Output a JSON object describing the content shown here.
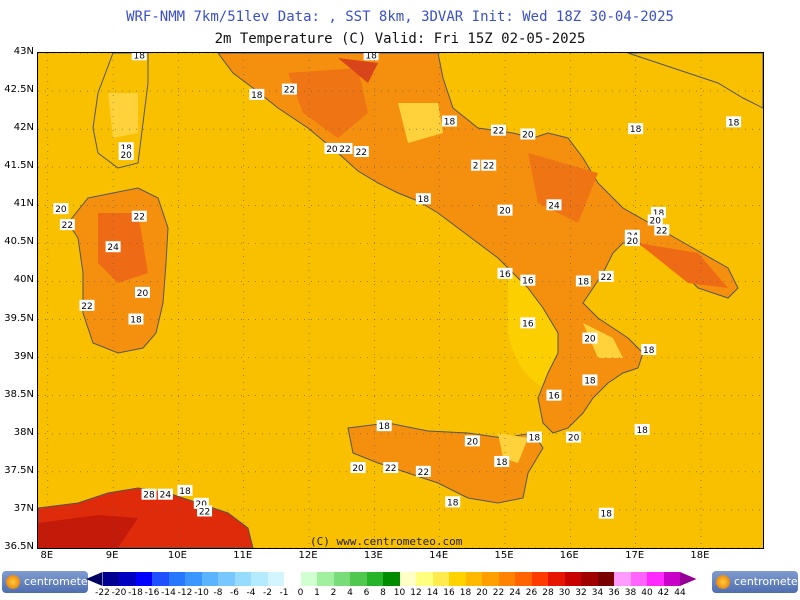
{
  "header": {
    "line1": "WRF-NMM 7km/51lev  Data: , SST 8km, 3DVAR  Init: Wed 18Z 30-04-2025",
    "line2": "2m Temperature (C)  Valid: Fri 15Z 02-05-2025"
  },
  "axes": {
    "lat_labels": [
      "43N",
      "42.5N",
      "42N",
      "41.5N",
      "41N",
      "40.5N",
      "40N",
      "39.5N",
      "39N",
      "38.5N",
      "38N",
      "37.5N",
      "37N",
      "36.5N"
    ],
    "lon_labels": [
      "8E",
      "9E",
      "10E",
      "11E",
      "12E",
      "13E",
      "14E",
      "15E",
      "16E",
      "17E",
      "18E"
    ]
  },
  "copyright": "(C) www.centrometeo.com",
  "contour_labels": [
    {
      "text": "18",
      "lon": 9.4,
      "lat": 42.97
    },
    {
      "text": "18",
      "lon": 11.2,
      "lat": 42.45
    },
    {
      "text": "22",
      "lon": 11.7,
      "lat": 42.52
    },
    {
      "text": "18",
      "lon": 12.95,
      "lat": 42.97
    },
    {
      "text": "18",
      "lon": 14.15,
      "lat": 42.1
    },
    {
      "text": "22",
      "lon": 14.9,
      "lat": 41.98
    },
    {
      "text": "20",
      "lon": 15.35,
      "lat": 41.93
    },
    {
      "text": "18",
      "lon": 17.0,
      "lat": 42.0
    },
    {
      "text": "18",
      "lon": 18.5,
      "lat": 42.09
    },
    {
      "text": "20",
      "lon": 12.35,
      "lat": 41.74
    },
    {
      "text": "22",
      "lon": 12.55,
      "lat": 41.74
    },
    {
      "text": "22",
      "lon": 12.8,
      "lat": 41.7
    },
    {
      "text": "2",
      "lon": 14.55,
      "lat": 41.52
    },
    {
      "text": "22",
      "lon": 14.75,
      "lat": 41.52
    },
    {
      "text": "18",
      "lon": 13.75,
      "lat": 41.08
    },
    {
      "text": "20",
      "lon": 15.0,
      "lat": 40.93
    },
    {
      "text": "24",
      "lon": 15.75,
      "lat": 41.0
    },
    {
      "text": "18",
      "lon": 17.35,
      "lat": 40.9
    },
    {
      "text": "20",
      "lon": 17.3,
      "lat": 40.8
    },
    {
      "text": "22",
      "lon": 17.4,
      "lat": 40.67
    },
    {
      "text": "24",
      "lon": 16.95,
      "lat": 40.6
    },
    {
      "text": "20",
      "lon": 16.95,
      "lat": 40.53
    },
    {
      "text": "16",
      "lon": 15.0,
      "lat": 40.1
    },
    {
      "text": "16",
      "lon": 15.35,
      "lat": 40.01
    },
    {
      "text": "18",
      "lon": 16.2,
      "lat": 40.0
    },
    {
      "text": "22",
      "lon": 16.55,
      "lat": 40.06
    },
    {
      "text": "16",
      "lon": 15.35,
      "lat": 39.45
    },
    {
      "text": "20",
      "lon": 16.3,
      "lat": 39.25
    },
    {
      "text": "18",
      "lon": 17.2,
      "lat": 39.1
    },
    {
      "text": "18",
      "lon": 16.3,
      "lat": 38.7
    },
    {
      "text": "16",
      "lon": 15.75,
      "lat": 38.5
    },
    {
      "text": "18",
      "lon": 17.1,
      "lat": 38.05
    },
    {
      "text": "20",
      "lon": 16.05,
      "lat": 37.95
    },
    {
      "text": "18",
      "lon": 15.45,
      "lat": 37.95
    },
    {
      "text": "18",
      "lon": 13.15,
      "lat": 38.1
    },
    {
      "text": "20",
      "lon": 14.5,
      "lat": 37.9
    },
    {
      "text": "18",
      "lon": 14.95,
      "lat": 37.63
    },
    {
      "text": "20",
      "lon": 12.75,
      "lat": 37.55
    },
    {
      "text": "22",
      "lon": 13.25,
      "lat": 37.55
    },
    {
      "text": "22",
      "lon": 13.75,
      "lat": 37.5
    },
    {
      "text": "18",
      "lon": 14.2,
      "lat": 37.1
    },
    {
      "text": "18",
      "lon": 16.55,
      "lat": 36.95
    },
    {
      "text": "18",
      "lon": 9.2,
      "lat": 41.75
    },
    {
      "text": "20",
      "lon": 9.2,
      "lat": 41.66
    },
    {
      "text": "20",
      "lon": 8.2,
      "lat": 40.95
    },
    {
      "text": "22",
      "lon": 8.3,
      "lat": 40.74
    },
    {
      "text": "22",
      "lon": 9.4,
      "lat": 40.85
    },
    {
      "text": "24",
      "lon": 9.0,
      "lat": 40.45
    },
    {
      "text": "20",
      "lon": 9.45,
      "lat": 39.85
    },
    {
      "text": "22",
      "lon": 8.6,
      "lat": 39.68
    },
    {
      "text": "18",
      "lon": 9.35,
      "lat": 39.5
    },
    {
      "text": "28",
      "lon": 9.55,
      "lat": 37.2
    },
    {
      "text": "24",
      "lon": 9.8,
      "lat": 37.2
    },
    {
      "text": "18",
      "lon": 10.1,
      "lat": 37.25
    },
    {
      "text": "20",
      "lon": 10.35,
      "lat": 37.08
    },
    {
      "text": "22",
      "lon": 10.4,
      "lat": 36.98
    }
  ],
  "colorbar": {
    "labels": [
      "-22",
      "-20",
      "-18",
      "-16",
      "-14",
      "-12",
      "-10",
      "-8",
      "-6",
      "-4",
      "-2",
      "-1",
      "0",
      "1",
      "2",
      "4",
      "6",
      "8",
      "10",
      "12",
      "14",
      "16",
      "18",
      "20",
      "22",
      "24",
      "26",
      "28",
      "30",
      "32",
      "34",
      "36",
      "38",
      "40",
      "42",
      "44"
    ],
    "colors": [
      "#000060",
      "#000090",
      "#0000c0",
      "#0000ff",
      "#1e50ff",
      "#2878ff",
      "#3c96ff",
      "#5ab4ff",
      "#78c8ff",
      "#96dcff",
      "#b4ebff",
      "#d2f5ff",
      "#ffffff",
      "#d2ffd2",
      "#a0f0a0",
      "#78dc78",
      "#50c850",
      "#28b428",
      "#008c00",
      "#ffffc8",
      "#ffff80",
      "#ffeb50",
      "#ffd200",
      "#ffb900",
      "#ffa000",
      "#ff8200",
      "#ff6400",
      "#ff3c00",
      "#e61400",
      "#c80000",
      "#a00000",
      "#780000",
      "#ff9bff",
      "#ff64ff",
      "#ff28ff",
      "#c800c8",
      "#960096"
    ],
    "brand_left": "centrometeo",
    "brand_right": "centrometeo"
  }
}
